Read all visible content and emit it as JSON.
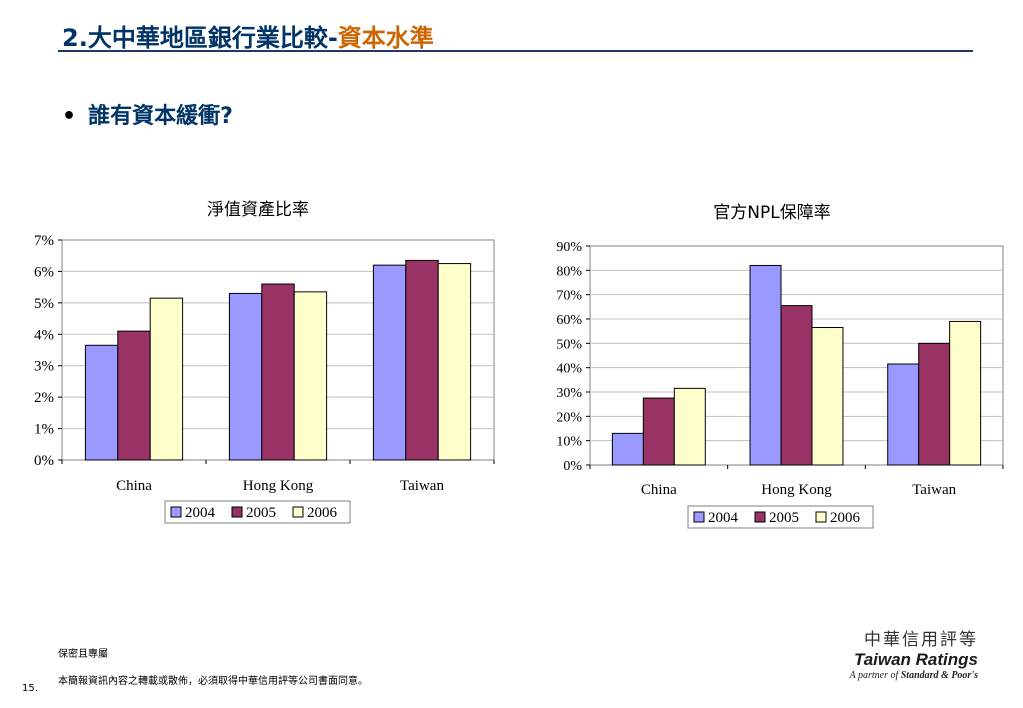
{
  "slide": {
    "title_prefix": "2.大中華地區銀行業比較-",
    "title_highlight": "資本水準",
    "bullet": "誰有資本緩衝?",
    "footer_confidential": "保密且專屬",
    "footer_notice": "本簡報資訊內容之轉載或散佈，必須取得中華信用評等公司書面同意。",
    "page_number": "15.",
    "logo_cn": "中華信用評等",
    "logo_en": "Taiwan Ratings",
    "logo_tag_prefix": "A partner of ",
    "logo_tag_brand": "Standard & Poor's"
  },
  "colors": {
    "2004": "#9999ff",
    "2005": "#993366",
    "2006": "#ffffcc",
    "title": "#003366",
    "highlight": "#cc6600"
  },
  "chart_data": [
    {
      "type": "bar",
      "title": "淨值資產比率",
      "categories": [
        "China",
        "Hong Kong",
        "Taiwan"
      ],
      "series": [
        {
          "name": "2004",
          "values": [
            3.65,
            5.3,
            6.2
          ]
        },
        {
          "name": "2005",
          "values": [
            4.1,
            5.6,
            6.35
          ]
        },
        {
          "name": "2006",
          "values": [
            5.15,
            5.35,
            6.25
          ]
        }
      ],
      "ylim": [
        0,
        7
      ],
      "yticks": [
        "0%",
        "1%",
        "2%",
        "3%",
        "4%",
        "5%",
        "6%",
        "7%"
      ],
      "grid": true,
      "legend": "bottom"
    },
    {
      "type": "bar",
      "title": "官方NPL保障率",
      "categories": [
        "China",
        "Hong Kong",
        "Taiwan"
      ],
      "series": [
        {
          "name": "2004",
          "values": [
            13,
            82,
            41.5
          ]
        },
        {
          "name": "2005",
          "values": [
            27.5,
            65.5,
            50
          ]
        },
        {
          "name": "2006",
          "values": [
            31.5,
            56.5,
            59
          ]
        }
      ],
      "ylim": [
        0,
        90
      ],
      "yticks": [
        "0%",
        "10%",
        "20%",
        "30%",
        "40%",
        "50%",
        "60%",
        "70%",
        "80%",
        "90%"
      ],
      "grid": true,
      "legend": "bottom"
    }
  ]
}
